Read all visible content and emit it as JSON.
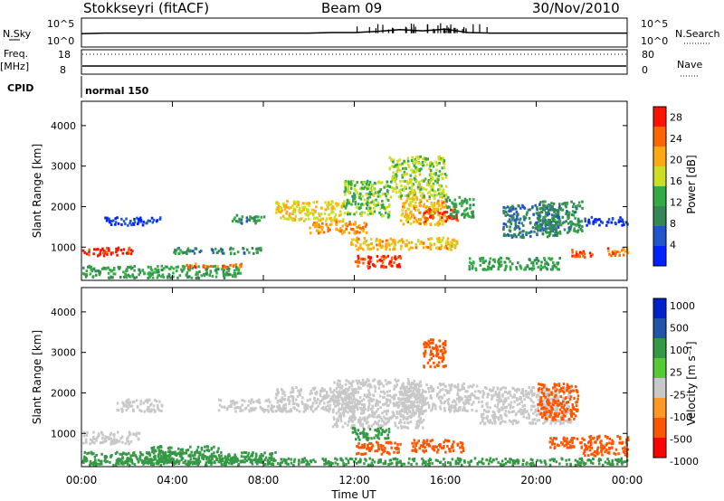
{
  "header": {
    "station": "Stokkseyri (fitACF)",
    "beam": "Beam 09",
    "date": "30/Nov/2010"
  },
  "strip_labels": {
    "nsky": "N.Sky",
    "nsky_ticks": [
      "10^5",
      "10^0"
    ],
    "nsearch": "N.Search",
    "nsearch_ticks": [
      "10^5",
      "10^0"
    ],
    "freq_top": "Freq.",
    "freq_unit": "[MHz]",
    "freq_ticks": [
      "18",
      "8"
    ],
    "nave": "Nave",
    "nave_ticks": [
      "80",
      "0"
    ],
    "cpid": "CPID",
    "cpid_text": "normal 150"
  },
  "colors": {
    "power": [
      "#0022ff",
      "#2255cc",
      "#338855",
      "#33aa44",
      "#ccdd22",
      "#ffaa11",
      "#ff6600",
      "#ff1100"
    ],
    "velocity": [
      "#ff0000",
      "#ff5500",
      "#ff9922",
      "#c8c8c8",
      "#55cc33",
      "#339944",
      "#2255aa",
      "#0022cc"
    ]
  },
  "chart_data": [
    {
      "type": "line",
      "title": "N.Sky / N.Search",
      "x": [
        0,
        1,
        2,
        3,
        4,
        5,
        6,
        7,
        8,
        9,
        10,
        11,
        12,
        13,
        14,
        15,
        16,
        17,
        18,
        19,
        20,
        21,
        22,
        23,
        24
      ],
      "series": [
        {
          "name": "N.Sky",
          "values": [
            2.3,
            2.4,
            2.4,
            2.4,
            2.4,
            2.4,
            2.4,
            2.4,
            2.4,
            2.4,
            2.4,
            2.5,
            2.5,
            2.7,
            3.0,
            2.8,
            3.1,
            2.5,
            2.4,
            2.4,
            2.4,
            2.4,
            2.4,
            2.4,
            2.4
          ]
        }
      ],
      "ylim": [
        0,
        5
      ],
      "yticks": [
        "10^0",
        "10^5"
      ]
    },
    {
      "type": "line",
      "title": "Freq. / Nave",
      "x": [
        0,
        4,
        8,
        12,
        16,
        20,
        24
      ],
      "series": [
        {
          "name": "Freq.",
          "values": [
            10.4,
            10.4,
            10.4,
            10.4,
            10.4,
            10.4,
            10.4
          ]
        },
        {
          "name": "Nave",
          "values": [
            80,
            80,
            80,
            80,
            80,
            80,
            80
          ]
        }
      ],
      "ylim": [
        8,
        18
      ]
    },
    {
      "type": "heatmap",
      "title": "Power",
      "ylabel": "Slant Range [km]",
      "xlim": [
        0,
        24
      ],
      "ylim": [
        180,
        4600
      ],
      "yticks": [
        1000,
        2000,
        3000,
        4000
      ],
      "colorbar_label": "Power [dB]",
      "colorbar_ticks": [
        4,
        8,
        12,
        16,
        20,
        24,
        28
      ],
      "colorbar_range": [
        0,
        30
      ],
      "regions": [
        {
          "t": [
            0.0,
            2.2
          ],
          "r": [
            750,
            950
          ],
          "value": 28
        },
        {
          "t": [
            0.0,
            7.0
          ],
          "r": [
            200,
            500
          ],
          "value": 12
        },
        {
          "t": [
            1.0,
            3.5
          ],
          "r": [
            1500,
            1700
          ],
          "value": 4
        },
        {
          "t": [
            4.0,
            8.0
          ],
          "r": [
            800,
            950
          ],
          "value": 10
        },
        {
          "t": [
            4.5,
            7.0
          ],
          "r": [
            450,
            550
          ],
          "value": 24
        },
        {
          "t": [
            6.5,
            8.0
          ],
          "r": [
            1550,
            1750
          ],
          "value": 10
        },
        {
          "t": [
            8.5,
            11.5
          ],
          "r": [
            1600,
            2100
          ],
          "value": 18
        },
        {
          "t": [
            10.0,
            12.5
          ],
          "r": [
            1300,
            1600
          ],
          "value": 22
        },
        {
          "t": [
            11.5,
            13.5
          ],
          "r": [
            1700,
            2600
          ],
          "value": 14
        },
        {
          "t": [
            11.8,
            16.5
          ],
          "r": [
            900,
            1200
          ],
          "value": 20
        },
        {
          "t": [
            12.0,
            14.0
          ],
          "r": [
            450,
            750
          ],
          "value": 27
        },
        {
          "t": [
            14.0,
            16.0
          ],
          "r": [
            1500,
            2200
          ],
          "value": 20
        },
        {
          "t": [
            15.0,
            16.5
          ],
          "r": [
            1600,
            1900
          ],
          "value": 27
        },
        {
          "t": [
            13.5,
            16.0
          ],
          "r": [
            2200,
            3200
          ],
          "value": 16
        },
        {
          "t": [
            16.0,
            17.2
          ],
          "r": [
            1700,
            2200
          ],
          "value": 12
        },
        {
          "t": [
            17.0,
            21.0
          ],
          "r": [
            400,
            700
          ],
          "value": 12
        },
        {
          "t": [
            18.5,
            21.0
          ],
          "r": [
            1200,
            2000
          ],
          "value": 8
        },
        {
          "t": [
            20.0,
            22.0
          ],
          "r": [
            1300,
            2100
          ],
          "value": 10
        },
        {
          "t": [
            21.5,
            22.5
          ],
          "r": [
            700,
            900
          ],
          "value": 26
        },
        {
          "t": [
            22.0,
            24.0
          ],
          "r": [
            1500,
            1700
          ],
          "value": 4
        },
        {
          "t": [
            23.0,
            24.0
          ],
          "r": [
            750,
            950
          ],
          "value": 24
        }
      ]
    },
    {
      "type": "heatmap",
      "title": "Velocity",
      "ylabel": "Slant Range [km]",
      "xlabel": "Time UT",
      "xticks": [
        "00:00",
        "04:00",
        "08:00",
        "12:00",
        "16:00",
        "20:00",
        "00:00"
      ],
      "xlim": [
        0,
        24
      ],
      "ylim": [
        180,
        4600
      ],
      "yticks": [
        1000,
        2000,
        3000,
        4000
      ],
      "colorbar_label": "Velocity [m s⁻¹]",
      "colorbar_ticks": [
        1000,
        500,
        100,
        25,
        -25,
        -100,
        -500,
        -1000
      ],
      "regions": [
        {
          "t": [
            0.0,
            2.5
          ],
          "r": [
            700,
            1000
          ],
          "value": 0
        },
        {
          "t": [
            0.0,
            8.5
          ],
          "r": [
            200,
            500
          ],
          "value": 150
        },
        {
          "t": [
            1.5,
            3.5
          ],
          "r": [
            1500,
            1800
          ],
          "value": 0
        },
        {
          "t": [
            3.0,
            6.0
          ],
          "r": [
            400,
            650
          ],
          "value": 150
        },
        {
          "t": [
            6.0,
            9.0
          ],
          "r": [
            1500,
            1800
          ],
          "value": 0
        },
        {
          "t": [
            8.5,
            12.0
          ],
          "r": [
            1500,
            2100
          ],
          "value": 0
        },
        {
          "t": [
            11.0,
            15.0
          ],
          "r": [
            1100,
            2300
          ],
          "value": 0
        },
        {
          "t": [
            14.0,
            17.5
          ],
          "r": [
            1500,
            2200
          ],
          "value": 0
        },
        {
          "t": [
            12.0,
            14.0
          ],
          "r": [
            450,
            750
          ],
          "value": -300
        },
        {
          "t": [
            14.5,
            16.8
          ],
          "r": [
            500,
            800
          ],
          "value": -400
        },
        {
          "t": [
            11.8,
            13.5
          ],
          "r": [
            800,
            1100
          ],
          "value": 200
        },
        {
          "t": [
            15.0,
            16.0
          ],
          "r": [
            2600,
            3300
          ],
          "value": -250
        },
        {
          "t": [
            17.5,
            21.5
          ],
          "r": [
            1200,
            2100
          ],
          "value": 0
        },
        {
          "t": [
            20.0,
            21.8
          ],
          "r": [
            1300,
            2200
          ],
          "value": -200
        },
        {
          "t": [
            20.5,
            22.0
          ],
          "r": [
            600,
            900
          ],
          "value": -300
        },
        {
          "t": [
            22.0,
            24.0
          ],
          "r": [
            400,
            900
          ],
          "value": -200
        },
        {
          "t": [
            0.0,
            24.0
          ],
          "r": [
            180,
            350
          ],
          "value": 120
        }
      ]
    }
  ]
}
